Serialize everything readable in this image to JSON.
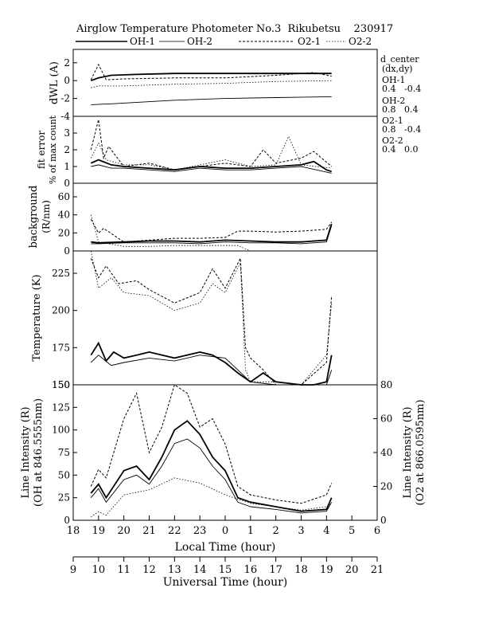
{
  "title": "Airglow Temperature Photometer No.3  Rikubetsu    230917",
  "legend": [
    {
      "label": "OH-1",
      "style": "solid-thick"
    },
    {
      "label": "OH-2",
      "style": "solid-thin"
    },
    {
      "label": "O2-1",
      "style": "dashed"
    },
    {
      "label": "O2-2",
      "style": "dotted"
    }
  ],
  "side_notes": {
    "d_center": "d_center",
    "dxdy": "(dx,dy)",
    "oh1": "OH-1",
    "oh1_val": "0.4   -0.4",
    "oh2": "OH-2",
    "oh2_val": "0.8   0.4",
    "o21": "O2-1",
    "o21_val": "0.8   -0.4",
    "o22": "O2-2",
    "o22_val": "0.4   0.0"
  },
  "axes": {
    "local_time_label": "Local Time (hour)",
    "universal_time_label": "Universal Time (hour)",
    "local_ticks": [
      "18",
      "19",
      "20",
      "21",
      "22",
      "23",
      "0",
      "1",
      "2",
      "3",
      "4",
      "5",
      "6"
    ],
    "ut_ticks": [
      "9",
      "10",
      "11",
      "12",
      "13",
      "14",
      "15",
      "16",
      "17",
      "18",
      "19",
      "20",
      "21"
    ]
  },
  "panels": {
    "dwl": {
      "ylabel": "dWL (A)",
      "ticks": [
        "-4",
        "-2",
        "0",
        "2"
      ]
    },
    "fit": {
      "ylabel1": "fit error",
      "ylabel2": "% of max count",
      "ticks": [
        "0",
        "1",
        "2",
        "3"
      ]
    },
    "bg": {
      "ylabel1": "background",
      "ylabel2": "(R/nm)",
      "ticks": [
        "0",
        "20",
        "40",
        "60"
      ]
    },
    "temp": {
      "ylabel": "Temperature (K)",
      "ticks": [
        "150",
        "175",
        "200",
        "225"
      ]
    },
    "int": {
      "ylabel1": "Line Intensity (R)",
      "ylabel2": "(OH at 846.5555nm)",
      "ylabel_r1": "Line Intensity (R)",
      "ylabel_r2": "(O2 at 866.0595nm)",
      "ticks_left": [
        "0",
        "25",
        "50",
        "75",
        "100",
        "125",
        "150"
      ],
      "ticks_right": [
        "0",
        "20",
        "40",
        "60",
        "80"
      ]
    }
  },
  "chart_data": {
    "type": "line",
    "x_unit": "local time (hour, 24+ = after midnight)",
    "xlim": [
      18,
      30
    ],
    "panels": [
      {
        "name": "dWL",
        "ylim": [
          -4,
          3.5
        ],
        "series": [
          {
            "name": "OH-1",
            "x": [
              18.7,
              19.0,
              19.5,
              20.5,
              22,
              24,
              26,
              27,
              28.2
            ],
            "y": [
              0,
              0.3,
              0.6,
              0.7,
              0.8,
              0.8,
              0.8,
              0.8,
              0.8
            ]
          },
          {
            "name": "OH-2",
            "x": [
              18.7,
              19.5,
              22,
              24,
              26,
              28.2
            ],
            "y": [
              -2.7,
              -2.6,
              -2.2,
              -2.0,
              -1.9,
              -1.8
            ]
          },
          {
            "name": "O2-1",
            "x": [
              18.7,
              19.0,
              19.3,
              20,
              22,
              24,
              26,
              27.5,
              28.2
            ],
            "y": [
              0.1,
              1.8,
              0.1,
              0.2,
              0.3,
              0.3,
              0.6,
              0.9,
              0.5
            ]
          },
          {
            "name": "O2-2",
            "x": [
              18.7,
              19.0,
              20,
              22,
              24,
              26,
              28.2
            ],
            "y": [
              -0.8,
              -0.6,
              -0.6,
              -0.4,
              -0.3,
              -0.1,
              0.0
            ]
          }
        ]
      },
      {
        "name": "fit error",
        "ylim": [
          0,
          4
        ],
        "series": [
          {
            "name": "OH-1",
            "x": [
              18.7,
              19.0,
              19.5,
              20,
              21,
              22,
              23,
              24,
              25,
              26,
              27,
              27.5,
              28.0,
              28.2
            ],
            "y": [
              1.2,
              1.4,
              1.1,
              1.0,
              0.9,
              0.8,
              1.0,
              0.9,
              0.9,
              1.0,
              1.1,
              1.3,
              0.8,
              0.7
            ]
          },
          {
            "name": "OH-2",
            "x": [
              18.7,
              19.0,
              19.5,
              20,
              21,
              22,
              23,
              24,
              25,
              26,
              27,
              28.2
            ],
            "y": [
              1.0,
              1.1,
              0.9,
              0.9,
              0.8,
              0.7,
              0.9,
              0.8,
              0.8,
              0.9,
              1.0,
              0.6
            ]
          },
          {
            "name": "O2-1",
            "x": [
              18.7,
              19.0,
              19.2,
              19.4,
              20,
              21,
              22,
              23,
              24,
              25,
              25.5,
              26,
              27,
              27.5,
              28.2
            ],
            "y": [
              2.0,
              3.8,
              1.5,
              2.2,
              1.0,
              1.2,
              0.8,
              1.0,
              1.2,
              1.0,
              2.0,
              1.2,
              1.5,
              1.9,
              1.0
            ]
          },
          {
            "name": "O2-2",
            "x": [
              18.7,
              19.0,
              19.3,
              20,
              21,
              22,
              23,
              24,
              25,
              26,
              26.5,
              27,
              28.2
            ],
            "y": [
              1.5,
              2.4,
              1.4,
              1.1,
              1.1,
              0.8,
              1.1,
              1.4,
              1.0,
              1.1,
              2.8,
              1.1,
              0.9
            ]
          }
        ]
      },
      {
        "name": "background",
        "ylim": [
          0,
          75
        ],
        "series": [
          {
            "name": "OH-1",
            "x": [
              18.7,
              19,
              20,
              21,
              22,
              23,
              24,
              25,
              26,
              27,
              28,
              28.2
            ],
            "y": [
              10,
              9,
              10,
              11,
              11,
              10,
              12,
              11,
              10,
              10,
              12,
              30
            ]
          },
          {
            "name": "OH-2",
            "x": [
              18.7,
              19,
              20,
              21,
              22,
              23,
              24,
              25,
              26,
              27,
              28,
              28.2
            ],
            "y": [
              8,
              8,
              9,
              9,
              9,
              8,
              10,
              9,
              9,
              8,
              10,
              28
            ]
          },
          {
            "name": "O2-1",
            "x": [
              18.7,
              19.0,
              19.2,
              20,
              21,
              22,
              23,
              24,
              24.5,
              25,
              26,
              27,
              28,
              28.2
            ],
            "y": [
              35,
              20,
              25,
              10,
              12,
              14,
              14,
              15,
              22,
              22,
              21,
              22,
              24,
              32
            ]
          },
          {
            "name": "O2-2",
            "x": [
              18.7,
              19,
              20,
              21,
              22,
              23,
              24,
              24.5,
              25,
              26,
              27,
              28
            ],
            "y": [
              40,
              10,
              5,
              5,
              6,
              6,
              6,
              6,
              0,
              0,
              0,
              0
            ]
          }
        ]
      },
      {
        "name": "temperature",
        "ylim": [
          150,
          240
        ],
        "series": [
          {
            "name": "OH-1",
            "x": [
              18.7,
              19.0,
              19.3,
              19.6,
              20,
              20.5,
              21,
              22,
              23,
              23.5,
              24,
              24.5,
              25,
              25.5,
              26,
              27,
              27.5,
              28,
              28.2
            ],
            "y": [
              170,
              178,
              166,
              172,
              168,
              170,
              172,
              168,
              172,
              170,
              165,
              158,
              152,
              158,
              152,
              148,
              142,
              152,
              170
            ]
          },
          {
            "name": "OH-2",
            "x": [
              18.7,
              19.0,
              19.5,
              20,
              21,
              22,
              23,
              24,
              24.5,
              25,
              26,
              27,
              27.5,
              28,
              28.2
            ],
            "y": [
              165,
              170,
              163,
              165,
              168,
              166,
              170,
              168,
              160,
              152,
              150,
              148,
              145,
              150,
              160
            ]
          },
          {
            "name": "O2-1",
            "x": [
              18.7,
              19.0,
              19.3,
              19.8,
              20.5,
              21,
              22,
              23,
              23.5,
              24,
              24.6,
              24.8,
              25,
              25.5,
              26,
              27,
              28,
              28.2
            ],
            "y": [
              235,
              222,
              230,
              218,
              220,
              214,
              205,
              212,
              228,
              215,
              235,
              175,
              168,
              160,
              148,
              145,
              165,
              210
            ]
          },
          {
            "name": "O2-2",
            "x": [
              18.7,
              19.0,
              19.5,
              20,
              21,
              22,
              23,
              23.5,
              24,
              24.6,
              24.8,
              25,
              26,
              27,
              28,
              28.2
            ],
            "y": [
              240,
              215,
              222,
              212,
              210,
              200,
              205,
              218,
              212,
              232,
              160,
              152,
              152,
              148,
              170,
              205
            ]
          }
        ]
      },
      {
        "name": "line intensity",
        "ylim_left": [
          0,
          150
        ],
        "ylim_right": [
          0,
          80
        ],
        "series": [
          {
            "name": "OH-1",
            "axis": "left",
            "x": [
              18.7,
              19.0,
              19.3,
              20,
              20.5,
              21,
              21.5,
              22,
              22.5,
              23,
              23.5,
              24,
              24.5,
              25,
              26,
              27,
              28,
              28.2
            ],
            "y": [
              30,
              40,
              25,
              55,
              60,
              45,
              70,
              100,
              110,
              95,
              70,
              55,
              25,
              20,
              15,
              10,
              12,
              25
            ]
          },
          {
            "name": "OH-2",
            "axis": "left",
            "x": [
              18.7,
              19.0,
              19.3,
              20,
              20.5,
              21,
              21.5,
              22,
              22.5,
              23,
              23.5,
              24,
              24.5,
              25,
              26,
              27,
              28,
              28.2
            ],
            "y": [
              25,
              35,
              20,
              45,
              50,
              40,
              60,
              85,
              90,
              80,
              60,
              45,
              20,
              15,
              12,
              8,
              10,
              20
            ]
          },
          {
            "name": "O2-1",
            "axis": "right",
            "x": [
              18.7,
              19.0,
              19.3,
              20,
              20.5,
              21,
              21.5,
              22,
              22.5,
              23,
              23.5,
              24,
              24.5,
              25,
              26,
              27,
              28,
              28.2
            ],
            "y": [
              20,
              30,
              25,
              60,
              75,
              40,
              55,
              80,
              75,
              55,
              60,
              45,
              20,
              15,
              12,
              10,
              15,
              22
            ]
          },
          {
            "name": "O2-2",
            "axis": "right",
            "x": [
              18.7,
              19.0,
              19.3,
              20,
              21,
              22,
              23,
              24,
              25,
              26,
              27,
              28,
              28.2
            ],
            "y": [
              2,
              5,
              3,
              15,
              18,
              25,
              22,
              15,
              10,
              8,
              6,
              8,
              10
            ]
          }
        ]
      }
    ]
  }
}
